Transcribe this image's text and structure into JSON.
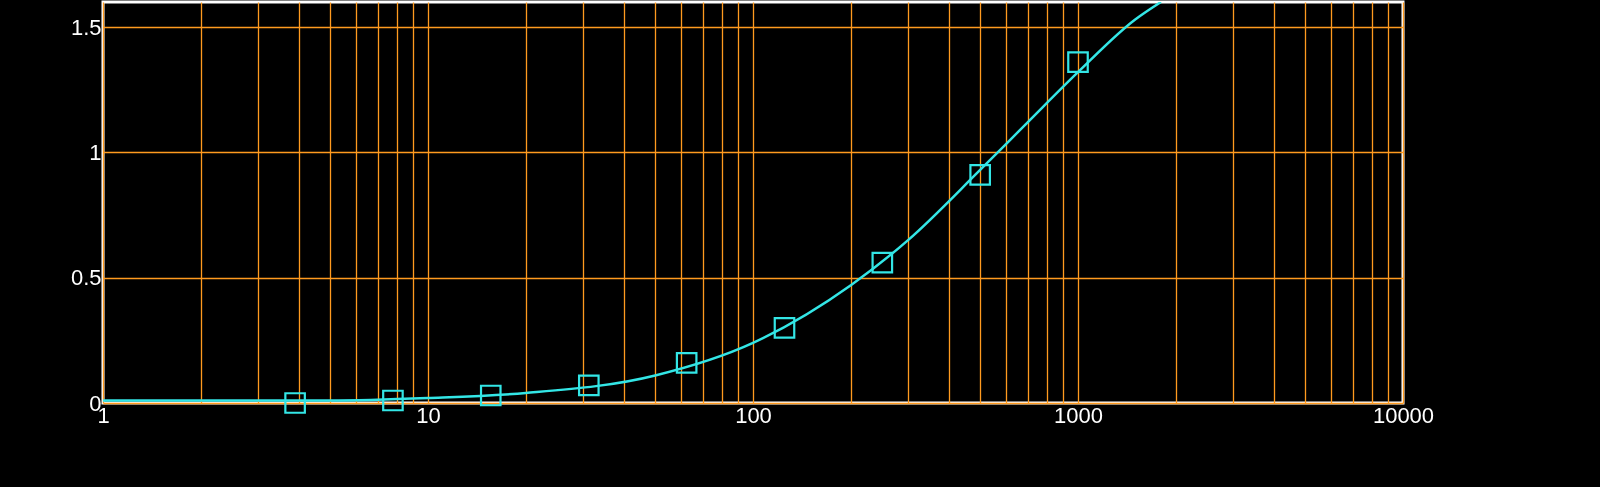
{
  "chart_data": {
    "type": "scatter",
    "log": "x",
    "grid": true,
    "xlim": [
      1,
      10000
    ],
    "ylim": [
      0,
      1.6
    ],
    "xticks": [
      1,
      {
        "value": 2,
        "label": null
      },
      {
        "value": 3,
        "label": null
      },
      {
        "value": 4,
        "label": null
      },
      {
        "value": 5,
        "label": null
      },
      {
        "value": 6,
        "label": null
      },
      {
        "value": 7,
        "label": null
      },
      {
        "value": 8,
        "label": null
      },
      {
        "value": 9,
        "label": null
      },
      10,
      {
        "value": 20,
        "label": null
      },
      {
        "value": 30,
        "label": null
      },
      {
        "value": 40,
        "label": null
      },
      {
        "value": 50,
        "label": null
      },
      {
        "value": 60,
        "label": null
      },
      {
        "value": 70,
        "label": null
      },
      {
        "value": 80,
        "label": null
      },
      {
        "value": 90,
        "label": null
      },
      100,
      {
        "value": 200,
        "label": null
      },
      {
        "value": 300,
        "label": null
      },
      {
        "value": 400,
        "label": null
      },
      {
        "value": 500,
        "label": null
      },
      {
        "value": 600,
        "label": null
      },
      {
        "value": 700,
        "label": null
      },
      {
        "value": 800,
        "label": null
      },
      {
        "value": 900,
        "label": null
      },
      1000,
      {
        "value": 2000,
        "label": null
      },
      {
        "value": 3000,
        "label": null
      },
      {
        "value": 4000,
        "label": null
      },
      {
        "value": 5000,
        "label": null
      },
      {
        "value": 6000,
        "label": null
      },
      {
        "value": 7000,
        "label": null
      },
      {
        "value": 8000,
        "label": null
      },
      {
        "value": 9000,
        "label": null
      },
      10000
    ],
    "yticks": [
      0,
      0.5,
      1,
      1.5
    ],
    "series": [
      {
        "marker": "square",
        "color": "#33e6e6",
        "x": [
          3.9,
          7.8,
          15.6,
          31.25,
          62.5,
          125,
          250,
          500,
          1000
        ],
        "values": [
          0.0,
          0.01,
          0.03,
          0.07,
          0.16,
          0.3,
          0.56,
          0.91,
          1.36
        ]
      },
      {
        "type": "line",
        "marker": "none",
        "line_style": "solid",
        "color": "#33e6e6",
        "x": [
          1,
          5,
          10,
          20,
          50,
          100,
          200,
          300,
          500,
          700,
          1000,
          1500,
          1800
        ],
        "values": [
          0.01,
          0.01,
          0.02,
          0.04,
          0.11,
          0.24,
          0.47,
          0.65,
          0.93,
          1.12,
          1.32,
          1.53,
          1.6
        ]
      }
    ]
  }
}
